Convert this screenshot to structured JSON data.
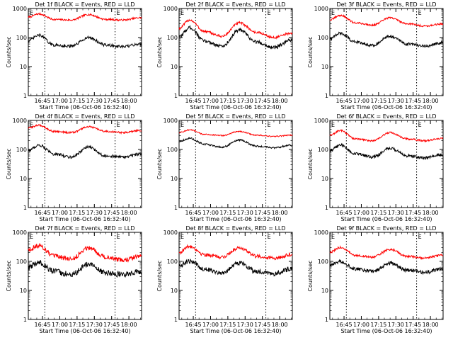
{
  "chart_data": [
    {
      "type": "line",
      "title": "Det 1f BLACK = Events, RED = LLD",
      "ylabel": "Counts/sec",
      "xlabel": "Start Time (06-Oct-06 16:32:40)",
      "x_tick_labels": [
        "16:45",
        "17:00",
        "17:15",
        "17:30",
        "17:45",
        "18:00"
      ],
      "y_tick_labels": [
        "1",
        "10",
        "100",
        "1000"
      ],
      "yscale": "log",
      "ylim": [
        1,
        1000
      ],
      "xlim": [
        "16:32:40",
        "18:11"
      ],
      "markers": [
        {
          "label": "E",
          "time": "16:32:40"
        },
        {
          "label": "E",
          "time": "17:48"
        }
      ],
      "vlines": [
        "16:47",
        "17:48"
      ],
      "series": [
        {
          "color": "#ff0000",
          "x": [
            "16:32",
            "16:42",
            "16:55",
            "17:10",
            "17:25",
            "17:40",
            "17:55",
            "18:10"
          ],
          "y": [
            500,
            650,
            420,
            400,
            620,
            420,
            400,
            480
          ],
          "noise": 0.03
        },
        {
          "color": "#000000",
          "x": [
            "16:32",
            "16:42",
            "16:55",
            "17:10",
            "17:25",
            "17:40",
            "17:55",
            "18:10"
          ],
          "y": [
            75,
            120,
            55,
            50,
            100,
            55,
            48,
            60
          ],
          "noise": 0.05
        }
      ]
    },
    {
      "type": "line",
      "title": "Det 2f BLACK = Events, RED = LLD",
      "ylabel": "Counts/sec",
      "xlabel": "Start Time (06-Oct-06 16:32:40)",
      "x_tick_labels": [
        "16:45",
        "17:00",
        "17:15",
        "17:30",
        "17:45",
        "18:00"
      ],
      "y_tick_labels": [
        "1",
        "10",
        "100",
        "1000"
      ],
      "yscale": "log",
      "ylim": [
        1,
        1000
      ],
      "xlim": [
        "16:32:40",
        "18:11"
      ],
      "markers": [
        {
          "label": "E",
          "time": "16:32:40"
        },
        {
          "label": "E",
          "time": "17:48"
        }
      ],
      "vlines": [
        "16:47",
        "17:48"
      ],
      "series": [
        {
          "color": "#ff0000",
          "x": [
            "16:32",
            "16:42",
            "16:55",
            "17:10",
            "17:25",
            "17:40",
            "17:55",
            "18:10"
          ],
          "y": [
            200,
            400,
            160,
            110,
            320,
            150,
            100,
            140
          ],
          "noise": 0.04
        },
        {
          "color": "#000000",
          "x": [
            "16:32",
            "16:42",
            "16:55",
            "17:10",
            "17:25",
            "17:40",
            "17:55",
            "18:10"
          ],
          "y": [
            100,
            220,
            75,
            50,
            180,
            70,
            45,
            80
          ],
          "noise": 0.06
        }
      ]
    },
    {
      "type": "line",
      "title": "Det 3f BLACK = Events, RED = LLD",
      "ylabel": "Counts/sec",
      "xlabel": "Start Time (06-Oct-06 16:32:40)",
      "x_tick_labels": [
        "16:45",
        "17:00",
        "17:15",
        "17:30",
        "17:45",
        "18:00"
      ],
      "y_tick_labels": [
        "1",
        "10",
        "100",
        "1000"
      ],
      "yscale": "log",
      "ylim": [
        1,
        1000
      ],
      "xlim": [
        "16:32:40",
        "18:11"
      ],
      "markers": [
        {
          "label": "E",
          "time": "16:32:40"
        },
        {
          "label": "E",
          "time": "17:48"
        }
      ],
      "vlines": [
        "16:47",
        "17:48"
      ],
      "series": [
        {
          "color": "#ff0000",
          "x": [
            "16:32",
            "16:42",
            "16:55",
            "17:10",
            "17:25",
            "17:40",
            "17:55",
            "18:10"
          ],
          "y": [
            400,
            580,
            320,
            270,
            480,
            300,
            250,
            290
          ],
          "noise": 0.03
        },
        {
          "color": "#000000",
          "x": [
            "16:32",
            "16:42",
            "16:55",
            "17:10",
            "17:25",
            "17:40",
            "17:55",
            "18:10"
          ],
          "y": [
            90,
            140,
            70,
            55,
            110,
            60,
            50,
            65
          ],
          "noise": 0.05
        }
      ]
    },
    {
      "type": "line",
      "title": "Det 4f BLACK = Events, RED = LLD",
      "ylabel": "Counts/sec",
      "xlabel": "Start Time (06-Oct-06 16:32:40)",
      "x_tick_labels": [
        "16:45",
        "17:00",
        "17:15",
        "17:30",
        "17:45",
        "18:00"
      ],
      "y_tick_labels": [
        "1",
        "10",
        "100",
        "1000"
      ],
      "yscale": "log",
      "ylim": [
        1,
        1000
      ],
      "xlim": [
        "16:32:40",
        "18:11"
      ],
      "markers": [
        {
          "label": "E",
          "time": "16:32:40"
        },
        {
          "label": "E",
          "time": "17:48"
        }
      ],
      "vlines": [
        "16:47",
        "17:48"
      ],
      "series": [
        {
          "color": "#ff0000",
          "x": [
            "16:32",
            "16:42",
            "16:55",
            "17:10",
            "17:25",
            "17:40",
            "17:55",
            "18:10"
          ],
          "y": [
            550,
            680,
            420,
            380,
            600,
            420,
            380,
            450
          ],
          "noise": 0.03
        },
        {
          "color": "#000000",
          "x": [
            "16:32",
            "16:42",
            "16:55",
            "17:10",
            "17:25",
            "17:40",
            "17:55",
            "18:10"
          ],
          "y": [
            90,
            140,
            70,
            55,
            120,
            60,
            55,
            70
          ],
          "noise": 0.05
        }
      ]
    },
    {
      "type": "line",
      "title": "Det 5f BLACK = Events, RED = LLD",
      "ylabel": "Counts/sec",
      "xlabel": "Start Time (06-Oct-06 16:32:40)",
      "x_tick_labels": [
        "16:45",
        "17:00",
        "17:15",
        "17:30",
        "17:45",
        "18:00"
      ],
      "y_tick_labels": [
        "1",
        "10",
        "100",
        "1000"
      ],
      "yscale": "log",
      "ylim": [
        1,
        1000
      ],
      "xlim": [
        "16:32:40",
        "18:11"
      ],
      "markers": [
        {
          "label": "E",
          "time": "16:32:40"
        },
        {
          "label": "E",
          "time": "17:48"
        }
      ],
      "vlines": [
        "16:47",
        "17:48"
      ],
      "series": [
        {
          "color": "#ff0000",
          "x": [
            "16:32",
            "16:42",
            "16:55",
            "17:10",
            "17:25",
            "17:40",
            "17:55",
            "18:10"
          ],
          "y": [
            380,
            470,
            330,
            300,
            420,
            310,
            280,
            310
          ],
          "noise": 0.02
        },
        {
          "color": "#000000",
          "x": [
            "16:32",
            "16:42",
            "16:55",
            "17:10",
            "17:25",
            "17:40",
            "17:55",
            "18:10"
          ],
          "y": [
            190,
            240,
            150,
            120,
            210,
            130,
            115,
            140
          ],
          "noise": 0.03
        }
      ]
    },
    {
      "type": "line",
      "title": "Det 6f BLACK = Events, RED = LLD",
      "ylabel": "Counts/sec",
      "xlabel": "Start Time (06-Oct-06 16:32:40)",
      "x_tick_labels": [
        "16:45",
        "17:00",
        "17:15",
        "17:30",
        "17:45",
        "18:00"
      ],
      "y_tick_labels": [
        "1",
        "10",
        "100",
        "1000"
      ],
      "yscale": "log",
      "ylim": [
        1,
        1000
      ],
      "xlim": [
        "16:32:40",
        "18:11"
      ],
      "markers": [
        {
          "label": "E",
          "time": "16:32:40"
        },
        {
          "label": "E",
          "time": "17:48"
        }
      ],
      "vlines": [
        "16:47",
        "17:48"
      ],
      "series": [
        {
          "color": "#ff0000",
          "x": [
            "16:32",
            "16:42",
            "16:55",
            "17:10",
            "17:25",
            "17:40",
            "17:55",
            "18:10"
          ],
          "y": [
            300,
            450,
            230,
            200,
            380,
            230,
            200,
            240
          ],
          "noise": 0.03
        },
        {
          "color": "#000000",
          "x": [
            "16:32",
            "16:42",
            "16:55",
            "17:10",
            "17:25",
            "17:40",
            "17:55",
            "18:10"
          ],
          "y": [
            90,
            140,
            70,
            55,
            110,
            60,
            52,
            65
          ],
          "noise": 0.05
        }
      ]
    },
    {
      "type": "line",
      "title": "Det 7f BLACK = Events, RED = LLD",
      "ylabel": "Counts/sec",
      "xlabel": "Start Time (06-Oct-06 16:32:40)",
      "x_tick_labels": [
        "16:45",
        "17:00",
        "17:15",
        "17:30",
        "17:45",
        "18:00"
      ],
      "y_tick_labels": [
        "1",
        "10",
        "100",
        "1000"
      ],
      "yscale": "log",
      "ylim": [
        1,
        1000
      ],
      "xlim": [
        "16:32:40",
        "18:11"
      ],
      "markers": [
        {
          "label": "E",
          "time": "16:32:40"
        },
        {
          "label": "E",
          "time": "17:48"
        }
      ],
      "vlines": [
        "16:47",
        "17:48"
      ],
      "series": [
        {
          "color": "#ff0000",
          "x": [
            "16:32",
            "16:42",
            "16:55",
            "17:10",
            "17:25",
            "17:40",
            "17:55",
            "18:10"
          ],
          "y": [
            250,
            350,
            150,
            120,
            300,
            140,
            110,
            150
          ],
          "noise": 0.08
        },
        {
          "color": "#000000",
          "x": [
            "16:32",
            "16:42",
            "16:55",
            "17:10",
            "17:25",
            "17:40",
            "17:55",
            "18:10"
          ],
          "y": [
            60,
            90,
            45,
            35,
            80,
            40,
            35,
            45
          ],
          "noise": 0.1
        }
      ]
    },
    {
      "type": "line",
      "title": "Det 8f BLACK = Events, RED = LLD",
      "ylabel": "Counts/sec",
      "xlabel": "Start Time (06-Oct-06 16:32:40)",
      "x_tick_labels": [
        "16:45",
        "17:00",
        "17:15",
        "17:30",
        "17:45",
        "18:00"
      ],
      "y_tick_labels": [
        "1",
        "10",
        "100",
        "1000"
      ],
      "yscale": "log",
      "ylim": [
        1,
        1000
      ],
      "xlim": [
        "16:32:40",
        "18:11"
      ],
      "markers": [
        {
          "label": "E",
          "time": "16:32:40"
        },
        {
          "label": "E",
          "time": "17:48"
        }
      ],
      "vlines": [
        "16:47",
        "17:48"
      ],
      "series": [
        {
          "color": "#ff0000",
          "x": [
            "16:32",
            "16:42",
            "16:55",
            "17:10",
            "17:25",
            "17:40",
            "17:55",
            "18:10"
          ],
          "y": [
            200,
            330,
            170,
            140,
            300,
            150,
            130,
            170
          ],
          "noise": 0.06
        },
        {
          "color": "#000000",
          "x": [
            "16:32",
            "16:42",
            "16:55",
            "17:10",
            "17:25",
            "17:40",
            "17:55",
            "18:10"
          ],
          "y": [
            70,
            100,
            55,
            40,
            90,
            45,
            38,
            55
          ],
          "noise": 0.08
        }
      ]
    },
    {
      "type": "line",
      "title": "Det 9f BLACK = Events, RED = LLD",
      "ylabel": "Counts/sec",
      "xlabel": "Start Time (06-Oct-06 16:32:40)",
      "x_tick_labels": [
        "16:45",
        "17:00",
        "17:15",
        "17:30",
        "17:45",
        "18:00"
      ],
      "y_tick_labels": [
        "1",
        "10",
        "100",
        "1000"
      ],
      "yscale": "log",
      "ylim": [
        1,
        1000
      ],
      "xlim": [
        "16:32:40",
        "18:11"
      ],
      "markers": [
        {
          "label": "E",
          "time": "16:32:40"
        },
        {
          "label": "E",
          "time": "17:48"
        }
      ],
      "vlines": [
        "16:47",
        "17:48"
      ],
      "series": [
        {
          "color": "#ff0000",
          "x": [
            "16:32",
            "16:42",
            "16:55",
            "17:10",
            "17:25",
            "17:40",
            "17:55",
            "18:10"
          ],
          "y": [
            200,
            300,
            160,
            140,
            260,
            150,
            130,
            160
          ],
          "noise": 0.04
        },
        {
          "color": "#000000",
          "x": [
            "16:32",
            "16:42",
            "16:55",
            "17:10",
            "17:25",
            "17:40",
            "17:55",
            "18:10"
          ],
          "y": [
            70,
            100,
            55,
            45,
            85,
            50,
            42,
            55
          ],
          "noise": 0.06
        }
      ]
    }
  ]
}
